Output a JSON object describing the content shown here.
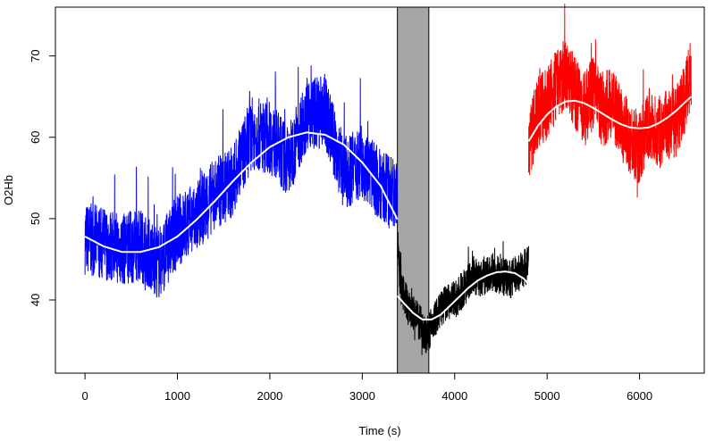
{
  "chart_data": {
    "type": "line",
    "xlabel": "Time (s)",
    "ylabel": "O2Hb",
    "xlim": [
      -320,
      6700
    ],
    "ylim": [
      31,
      76
    ],
    "x_ticks": [
      0,
      1000,
      2000,
      3000,
      4000,
      5000,
      6000
    ],
    "y_ticks": [
      40,
      50,
      60,
      70
    ],
    "shaded_interval": {
      "x": [
        3380,
        3720
      ],
      "color": "#a6a6a6"
    },
    "series": [
      {
        "color": "#0000ff",
        "x": [
          0,
          200,
          400,
          600,
          800,
          1000,
          1200,
          1400,
          1600,
          1800,
          2000,
          2200,
          2400,
          2600,
          2800,
          3000,
          3200,
          3380
        ],
        "values": [
          47.6,
          47.0,
          46.2,
          46.8,
          44.5,
          48.5,
          50.0,
          53.0,
          54.5,
          60.5,
          60.0,
          57.0,
          63.0,
          63.0,
          55.5,
          57.0,
          54.0,
          52.5
        ],
        "fit_x": [
          0,
          200,
          400,
          600,
          800,
          1000,
          1200,
          1400,
          1600,
          1800,
          2000,
          2200,
          2400,
          2600,
          2800,
          3000,
          3200,
          3380
        ],
        "fit_values": [
          47.8,
          46.6,
          45.9,
          45.9,
          46.5,
          47.8,
          49.8,
          52.1,
          54.6,
          56.9,
          58.8,
          60.0,
          60.6,
          60.3,
          59.1,
          56.9,
          54.0,
          49.9
        ]
      },
      {
        "color": "#000000",
        "x": [
          3380,
          3420,
          3500,
          3600,
          3700,
          3800,
          3900,
          4000,
          4100,
          4200,
          4300,
          4400,
          4500,
          4600,
          4700,
          4800
        ],
        "values": [
          47.0,
          41.5,
          39.0,
          37.5,
          35.5,
          38.0,
          39.5,
          40.0,
          41.5,
          43.0,
          42.5,
          43.5,
          43.0,
          42.5,
          43.5,
          44.5
        ],
        "fit_x": [
          3380,
          3450,
          3550,
          3650,
          3750,
          3850,
          3950,
          4050,
          4150,
          4250,
          4350,
          4450,
          4550,
          4650,
          4750,
          4800
        ],
        "fit_values": [
          40.5,
          39.6,
          38.4,
          37.6,
          37.6,
          38.2,
          39.3,
          40.4,
          41.5,
          42.4,
          43.0,
          43.4,
          43.5,
          43.3,
          42.6,
          41.9
        ]
      },
      {
        "color": "#ff0000",
        "x": [
          4800,
          4900,
          5000,
          5100,
          5200,
          5300,
          5400,
          5500,
          5600,
          5700,
          5800,
          5900,
          6000,
          6100,
          6200,
          6300,
          6400,
          6500,
          6560
        ],
        "values": [
          59.0,
          63.0,
          64.0,
          66.5,
          68.0,
          65.5,
          63.5,
          65.5,
          63.0,
          64.5,
          61.5,
          60.0,
          58.5,
          62.0,
          60.5,
          61.5,
          62.0,
          65.0,
          68.0
        ],
        "fit_x": [
          4800,
          4900,
          5000,
          5100,
          5200,
          5300,
          5400,
          5500,
          5600,
          5700,
          5800,
          5900,
          6000,
          6100,
          6200,
          6300,
          6400,
          6500,
          6560
        ],
        "fit_values": [
          59.5,
          61.4,
          62.8,
          63.8,
          64.4,
          64.5,
          64.2,
          63.6,
          62.9,
          62.2,
          61.6,
          61.2,
          61.1,
          61.2,
          61.7,
          62.4,
          63.3,
          64.4,
          65.0
        ]
      }
    ],
    "grid": false,
    "legend": "none"
  }
}
